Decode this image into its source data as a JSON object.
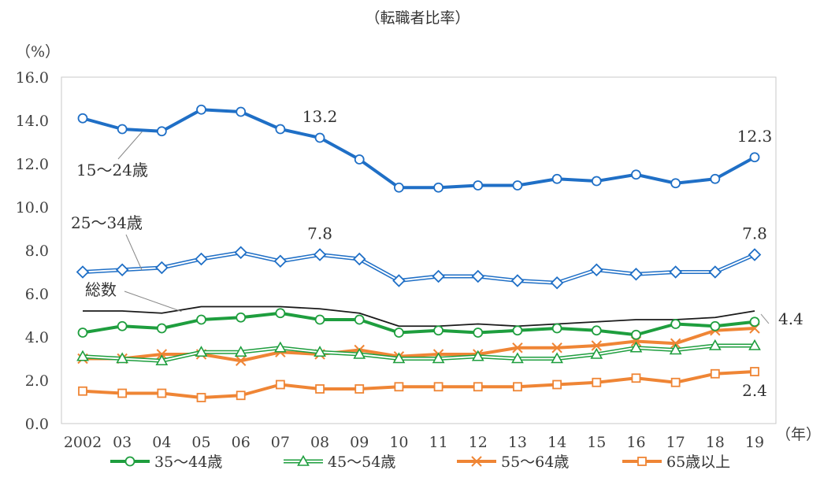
{
  "chart_title": "（転職者比率）",
  "chart_data": {
    "type": "line",
    "title": "（転職者比率）",
    "ylabel": "（%）",
    "xlabel": "（年）",
    "ylim": [
      0,
      16
    ],
    "yticks": [
      "0.0",
      "2.0",
      "4.0",
      "6.0",
      "8.0",
      "10.0",
      "12.0",
      "14.0",
      "16.0"
    ],
    "categories": [
      "2002",
      "03",
      "04",
      "05",
      "06",
      "07",
      "08",
      "09",
      "10",
      "11",
      "12",
      "13",
      "14",
      "15",
      "16",
      "17",
      "18",
      "19"
    ],
    "grid": false,
    "legend_position": "bottom",
    "series": [
      {
        "name": "15～24歳",
        "color": "#1f6fc6",
        "marker": "circle",
        "style": "solid-thick",
        "values": [
          14.1,
          13.6,
          13.5,
          14.5,
          14.4,
          13.6,
          13.2,
          12.2,
          10.9,
          10.9,
          11.0,
          11.0,
          11.3,
          11.2,
          11.5,
          11.1,
          11.3,
          12.3
        ]
      },
      {
        "name": "25～34歳",
        "color": "#1f6fc6",
        "marker": "diamond",
        "style": "double",
        "values": [
          7.0,
          7.1,
          7.2,
          7.6,
          7.9,
          7.5,
          7.8,
          7.6,
          6.6,
          6.8,
          6.8,
          6.6,
          6.5,
          7.1,
          6.9,
          7.0,
          7.0,
          7.8
        ]
      },
      {
        "name": "総数",
        "color": "#1a1a1a",
        "marker": "none",
        "style": "solid-thin",
        "values": [
          5.2,
          5.2,
          5.1,
          5.4,
          5.4,
          5.4,
          5.3,
          5.1,
          4.5,
          4.5,
          4.6,
          4.5,
          4.6,
          4.7,
          4.8,
          4.8,
          4.9,
          5.2
        ]
      },
      {
        "name": "35～44歳",
        "color": "#1e9e3e",
        "marker": "circle",
        "style": "solid-thick",
        "values": [
          4.2,
          4.5,
          4.4,
          4.8,
          4.9,
          5.1,
          4.8,
          4.8,
          4.2,
          4.3,
          4.2,
          4.3,
          4.4,
          4.3,
          4.1,
          4.6,
          4.5,
          4.7
        ]
      },
      {
        "name": "45～54歳",
        "color": "#1e9e3e",
        "marker": "triangle",
        "style": "double",
        "values": [
          3.1,
          3.0,
          2.9,
          3.3,
          3.3,
          3.5,
          3.3,
          3.2,
          3.0,
          3.0,
          3.1,
          3.0,
          3.0,
          3.2,
          3.5,
          3.4,
          3.6,
          3.6
        ]
      },
      {
        "name": "55～64歳",
        "color": "#ef8535",
        "marker": "x",
        "style": "solid-thick",
        "values": [
          3.0,
          3.0,
          3.2,
          3.2,
          2.9,
          3.3,
          3.2,
          3.4,
          3.1,
          3.2,
          3.2,
          3.5,
          3.5,
          3.6,
          3.8,
          3.7,
          4.3,
          4.4
        ]
      },
      {
        "name": "65歳以上",
        "color": "#ef8535",
        "marker": "square",
        "style": "solid-thick",
        "values": [
          1.5,
          1.4,
          1.4,
          1.2,
          1.3,
          1.8,
          1.6,
          1.6,
          1.7,
          1.7,
          1.7,
          1.7,
          1.8,
          1.9,
          2.1,
          1.9,
          2.3,
          2.4
        ]
      }
    ],
    "annotations": [
      {
        "text": "13.2",
        "series": "15～24歳",
        "category": "08"
      },
      {
        "text": "12.3",
        "series": "15～24歳",
        "category": "19"
      },
      {
        "text": "7.8",
        "series": "25～34歳",
        "category": "08"
      },
      {
        "text": "7.8",
        "series": "25～34歳",
        "category": "19"
      },
      {
        "text": "4.4",
        "series": "55～64歳",
        "category": "19"
      },
      {
        "text": "2.4",
        "series": "65歳以上",
        "category": "19"
      }
    ],
    "series_labels": [
      {
        "text": "15～24歳",
        "series": "15～24歳"
      },
      {
        "text": "25～34歳",
        "series": "25～34歳"
      },
      {
        "text": "総数",
        "series": "総数"
      }
    ],
    "legend": [
      "35～44歳",
      "45～54歳",
      "55～64歳",
      "65歳以上"
    ]
  }
}
